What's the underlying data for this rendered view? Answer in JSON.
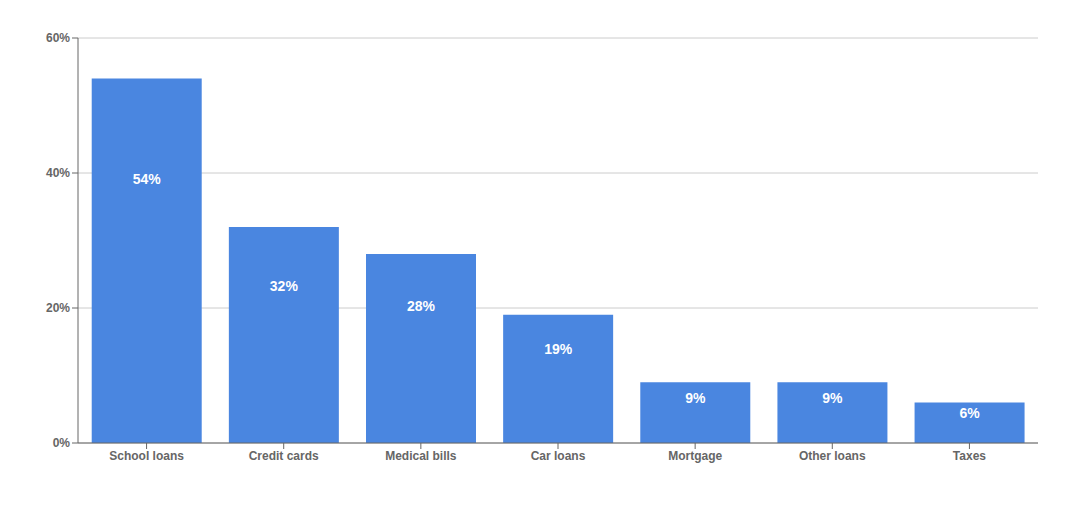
{
  "chart_data": {
    "type": "bar",
    "categories": [
      "School loans",
      "Credit cards",
      "Medical bills",
      "Car loans",
      "Mortgage",
      "Other loans",
      "Taxes"
    ],
    "values": [
      54,
      32,
      28,
      19,
      9,
      9,
      6
    ],
    "value_labels": [
      "54%",
      "32%",
      "28%",
      "19%",
      "9%",
      "9%",
      "6%"
    ],
    "color": "#4A86E0",
    "ylim": [
      0,
      60
    ],
    "yticks": [
      {
        "value": 0,
        "label": "0%"
      },
      {
        "value": 20,
        "label": "20%"
      },
      {
        "value": 40,
        "label": "40%"
      },
      {
        "value": 60,
        "label": "60%"
      }
    ],
    "grid": true
  }
}
